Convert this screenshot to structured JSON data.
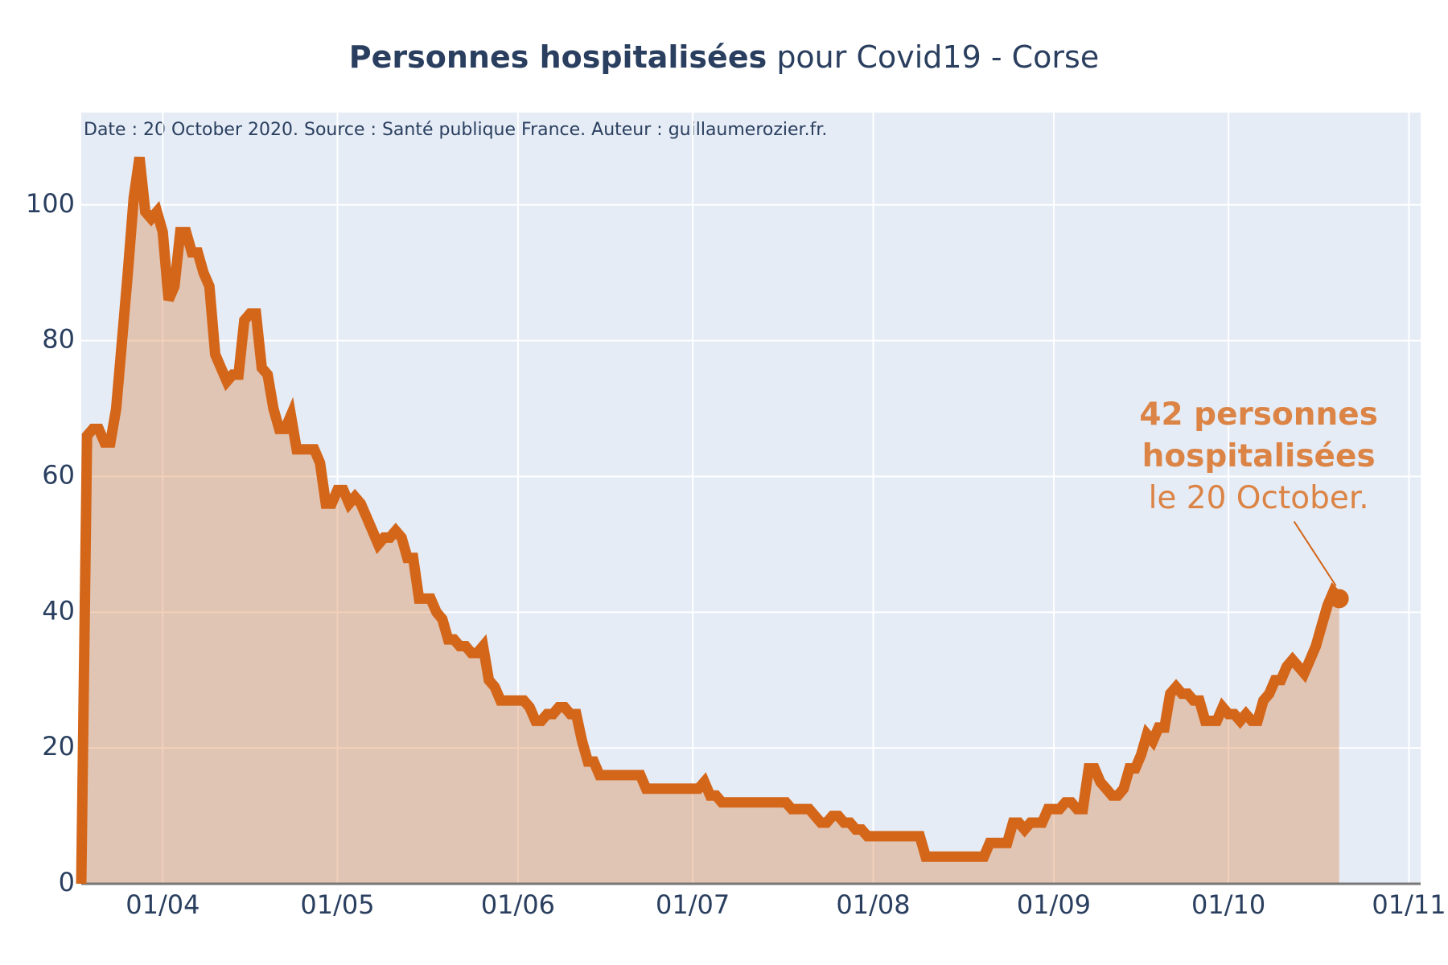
{
  "chart_data": {
    "type": "line",
    "title": [
      "Personnes hospitalisées",
      "pour Covid19 - Corse"
    ],
    "subtitle": "Date : 20 October 2020. Source : Santé publique France. Auteur : guillaumerozier.fr.",
    "annotation": [
      "42 personnes",
      "hospitalisées",
      "le 20 October."
    ],
    "color": "#d4661a",
    "fill": true,
    "grid": true,
    "x": [
      "18/03",
      "19/03",
      "20/03",
      "21/03",
      "22/03",
      "23/03",
      "24/03",
      "25/03",
      "26/03",
      "27/03",
      "28/03",
      "29/03",
      "30/03",
      "31/03",
      "01/04",
      "02/04",
      "03/04",
      "04/04",
      "05/04",
      "06/04",
      "07/04",
      "08/04",
      "09/04",
      "10/04",
      "11/04",
      "12/04",
      "13/04",
      "14/04",
      "15/04",
      "16/04",
      "17/04",
      "18/04",
      "19/04",
      "20/04",
      "21/04",
      "22/04",
      "23/04",
      "24/04",
      "25/04",
      "26/04",
      "27/04",
      "28/04",
      "29/04",
      "30/04",
      "01/05",
      "02/05",
      "03/05",
      "04/05",
      "05/05",
      "06/05",
      "07/05",
      "08/05",
      "09/05",
      "10/05",
      "11/05",
      "12/05",
      "13/05",
      "14/05",
      "15/05",
      "16/05",
      "17/05",
      "18/05",
      "19/05",
      "20/05",
      "21/05",
      "22/05",
      "23/05",
      "24/05",
      "25/05",
      "26/05",
      "27/05",
      "28/05",
      "29/05",
      "30/05",
      "31/05",
      "01/06",
      "02/06",
      "03/06",
      "04/06",
      "05/06",
      "06/06",
      "07/06",
      "08/06",
      "09/06",
      "10/06",
      "11/06",
      "12/06",
      "13/06",
      "14/06",
      "15/06",
      "16/06",
      "17/06",
      "18/06",
      "19/06",
      "20/06",
      "21/06",
      "22/06",
      "23/06",
      "24/06",
      "25/06",
      "26/06",
      "27/06",
      "28/06",
      "29/06",
      "30/06",
      "01/07",
      "02/07",
      "03/07",
      "04/07",
      "05/07",
      "06/07",
      "07/07",
      "08/07",
      "09/07",
      "10/07",
      "11/07",
      "12/07",
      "13/07",
      "14/07",
      "15/07",
      "16/07",
      "17/07",
      "18/07",
      "19/07",
      "20/07",
      "21/07",
      "22/07",
      "23/07",
      "24/07",
      "25/07",
      "26/07",
      "27/07",
      "28/07",
      "29/07",
      "30/07",
      "31/07",
      "01/08",
      "02/08",
      "03/08",
      "04/08",
      "05/08",
      "06/08",
      "07/08",
      "08/08",
      "09/08",
      "10/08",
      "11/08",
      "12/08",
      "13/08",
      "14/08",
      "15/08",
      "16/08",
      "17/08",
      "18/08",
      "19/08",
      "20/08",
      "21/08",
      "22/08",
      "23/08",
      "24/08",
      "25/08",
      "26/08",
      "27/08",
      "28/08",
      "29/08",
      "30/08",
      "31/08",
      "01/09",
      "02/09",
      "03/09",
      "04/09",
      "05/09",
      "06/09",
      "07/09",
      "08/09",
      "09/09",
      "10/09",
      "11/09",
      "12/09",
      "13/09",
      "14/09",
      "15/09",
      "16/09",
      "17/09",
      "18/09",
      "19/09",
      "20/09",
      "21/09",
      "22/09",
      "23/09",
      "24/09",
      "25/09",
      "26/09",
      "27/09",
      "28/09",
      "29/09",
      "30/09",
      "01/10",
      "02/10",
      "03/10",
      "04/10",
      "05/10",
      "06/10",
      "07/10",
      "08/10",
      "09/10",
      "10/10",
      "11/10",
      "12/10",
      "13/10",
      "14/10",
      "15/10",
      "16/10",
      "17/10",
      "18/10",
      "19/10",
      "20/10"
    ],
    "values": [
      0,
      66,
      67,
      67,
      65,
      65,
      70,
      80,
      90,
      101,
      107,
      99,
      98,
      99,
      96,
      86,
      88,
      96,
      96,
      93,
      93,
      90,
      88,
      78,
      76,
      74,
      75,
      75,
      83,
      84,
      84,
      76,
      75,
      70,
      67,
      67,
      69,
      64,
      64,
      64,
      64,
      62,
      56,
      56,
      58,
      58,
      56,
      57,
      56,
      54,
      52,
      50,
      51,
      51,
      52,
      51,
      48,
      48,
      42,
      42,
      42,
      40,
      39,
      36,
      36,
      35,
      35,
      34,
      34,
      35,
      30,
      29,
      27,
      27,
      27,
      27,
      27,
      26,
      24,
      24,
      25,
      25,
      26,
      26,
      25,
      25,
      21,
      18,
      18,
      16,
      16,
      16,
      16,
      16,
      16,
      16,
      16,
      14,
      14,
      14,
      14,
      14,
      14,
      14,
      14,
      14,
      14,
      15,
      13,
      13,
      12,
      12,
      12,
      12,
      12,
      12,
      12,
      12,
      12,
      12,
      12,
      12,
      11,
      11,
      11,
      11,
      10,
      9,
      9,
      10,
      10,
      9,
      9,
      8,
      8,
      7,
      7,
      7,
      7,
      7,
      7,
      7,
      7,
      7,
      7,
      4,
      4,
      4,
      4,
      4,
      4,
      4,
      4,
      4,
      4,
      4,
      6,
      6,
      6,
      6,
      9,
      9,
      8,
      9,
      9,
      9,
      11,
      11,
      11,
      12,
      12,
      11,
      11,
      17,
      17,
      15,
      14,
      13,
      13,
      14,
      17,
      17,
      19,
      22,
      21,
      23,
      23,
      28,
      29,
      28,
      28,
      27,
      27,
      24,
      24,
      24,
      26,
      25,
      25,
      24,
      25,
      24,
      24,
      27,
      28,
      30,
      30,
      32,
      33,
      32,
      31,
      33,
      35,
      38,
      41,
      43,
      42
    ],
    "xlim": [
      "18/03",
      "03/11"
    ],
    "xticks": [
      "01/04",
      "01/05",
      "01/06",
      "01/07",
      "01/08",
      "01/09",
      "01/10",
      "01/11"
    ],
    "ylim": [
      0,
      113.6
    ],
    "yticks": [
      0,
      20,
      40,
      60,
      80,
      100
    ]
  }
}
